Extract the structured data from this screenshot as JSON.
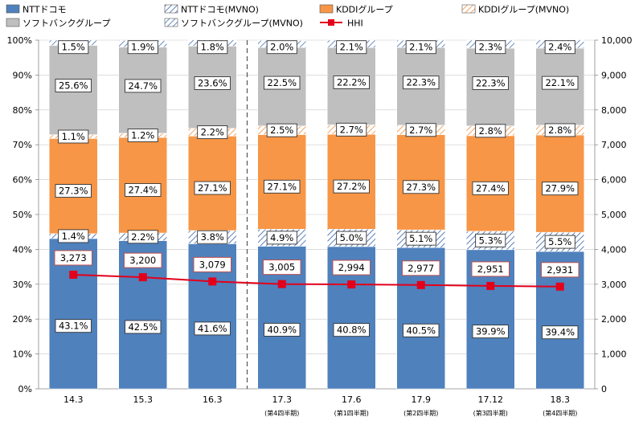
{
  "colors": {
    "ntt": "#4F81BD",
    "ntt_mvno_stroke": "#5B7FB8",
    "kddi": "#F79646",
    "kddi_mvno_stroke": "#F4A460",
    "softbank": "#BFBFBF",
    "softbank_mvno_stroke": "#6B8CC0",
    "hhi": "#E3001B",
    "divider": "#555555",
    "gridline": "#C8C8C8",
    "label_border_default": "#333333",
    "label_border_hhi": "#C0504D"
  },
  "chart_data": {
    "type": "bar",
    "stacked": true,
    "categories": [
      "14.3",
      "15.3",
      "16.3",
      "17.3",
      "17.6",
      "17.9",
      "17.12",
      "18.3"
    ],
    "sub_labels": [
      "",
      "",
      "",
      "(第4四半期)",
      "(第1四半期)",
      "(第2四半期)",
      "(第3四半期)",
      "(第4四半期)"
    ],
    "series": [
      {
        "name": "NTTドコモ",
        "key": "ntt",
        "values": [
          43.1,
          42.5,
          41.6,
          40.9,
          40.8,
          40.5,
          39.9,
          39.4
        ]
      },
      {
        "name": "NTTドコモ(MVNO)",
        "key": "ntt_mvno",
        "values": [
          1.4,
          2.2,
          3.8,
          4.9,
          5.0,
          5.1,
          5.3,
          5.5
        ]
      },
      {
        "name": "KDDIグループ",
        "key": "kddi",
        "values": [
          27.3,
          27.4,
          27.1,
          27.1,
          27.2,
          27.3,
          27.4,
          27.9
        ]
      },
      {
        "name": "KDDIグループ(MVNO)",
        "key": "kddi_mvno",
        "values": [
          1.1,
          1.2,
          2.2,
          2.5,
          2.7,
          2.7,
          2.8,
          2.8
        ]
      },
      {
        "name": "ソフトバンクグループ",
        "key": "softbank",
        "values": [
          25.6,
          24.7,
          23.6,
          22.5,
          22.2,
          22.3,
          22.3,
          22.1
        ]
      },
      {
        "name": "ソフトバンクグループ(MVNO)",
        "key": "softbank_mvno",
        "values": [
          1.5,
          1.9,
          1.8,
          2.0,
          2.1,
          2.1,
          2.3,
          2.4
        ]
      }
    ],
    "hhi": {
      "name": "HHI",
      "values": [
        3273,
        3200,
        3079,
        3005,
        2994,
        2977,
        2951,
        2931
      ]
    },
    "left_axis": {
      "min": 0,
      "max": 100,
      "ticks": [
        "0%",
        "10%",
        "20%",
        "30%",
        "40%",
        "50%",
        "60%",
        "70%",
        "80%",
        "90%",
        "100%"
      ]
    },
    "right_axis": {
      "min": 0,
      "max": 10000,
      "ticks": [
        "0",
        "1,000",
        "2,000",
        "3,000",
        "4,000",
        "5,000",
        "6,000",
        "7,000",
        "8,000",
        "9,000",
        "10,000"
      ]
    },
    "divider_after_index": 2,
    "grid": true,
    "legend_position": "top"
  }
}
